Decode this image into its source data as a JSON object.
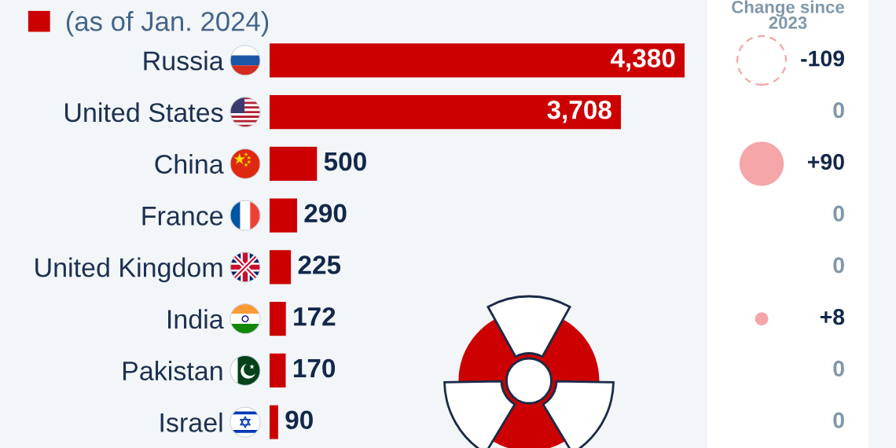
{
  "chart_data": [
    {
      "type": "bar",
      "orientation": "horizontal",
      "categories": [
        "Russia",
        "United States",
        "China",
        "France",
        "United Kingdom",
        "India",
        "Pakistan",
        "Israel"
      ],
      "series": [
        {
          "name": "(as of Jan. 2024)",
          "color": "#cc0000",
          "values": [
            4380,
            3708,
            500,
            290,
            225,
            172,
            170,
            90
          ],
          "value_labels": [
            "4,380",
            "3,708",
            "500",
            "290",
            "225",
            "172",
            "170",
            "90"
          ]
        }
      ],
      "legend": "top left"
    },
    {
      "type": "other",
      "title": "Change since\n2023",
      "values": [
        -109,
        0,
        90,
        0,
        0,
        8,
        0,
        0
      ],
      "value_labels": [
        "-109",
        "0",
        "+90",
        "0",
        "0",
        "+8",
        "0",
        "0"
      ],
      "color": "#f4a6a8"
    }
  ]
}
